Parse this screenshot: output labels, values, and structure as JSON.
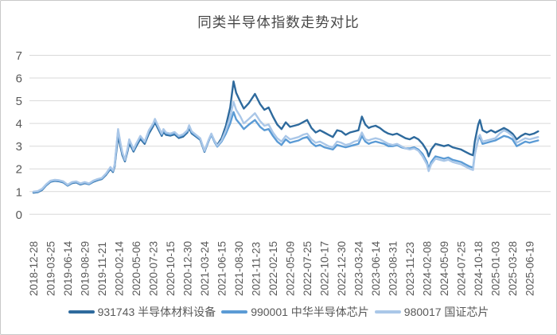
{
  "chart_data": {
    "type": "line",
    "title": "同类半导体指数走势对比",
    "xlabel": "",
    "ylabel": "",
    "ylim": [
      0,
      7
    ],
    "y_ticks": [
      0,
      1,
      2,
      3,
      4,
      5,
      6,
      7
    ],
    "grid": "horizontal",
    "legend_position": "bottom",
    "x_label_rotation": -90,
    "x_tick_labels": [
      "2018-12-28",
      "2019-03-25",
      "2019-06-14",
      "2019-08-29",
      "2019-11-21",
      "2020-02-14",
      "2020-05-06",
      "2020-07-23",
      "2020-10-15",
      "2020-12-30",
      "2021-03-24",
      "2021-06-15",
      "2021-08-30",
      "2021-11-23",
      "2022-02-15",
      "2022-05-09",
      "2022-07-25",
      "2022-10-17",
      "2022-12-30",
      "2023-03-24",
      "2023-06-14",
      "2023-08-31",
      "2023-11-23",
      "2024-02-08",
      "2024-05-09",
      "2024-07-25",
      "2024-10-18",
      "2025-01-03",
      "2025-03-28",
      "2025-06-19"
    ],
    "x_unit": "position in x-tick intervals (0 = 2018-12-28, each interval ≈ 12 weeks)",
    "t": [
      0,
      0.25,
      0.5,
      0.75,
      1,
      1.25,
      1.5,
      1.75,
      2,
      2.25,
      2.5,
      2.75,
      3,
      3.25,
      3.5,
      3.75,
      4,
      4.25,
      4.5,
      4.65,
      4.75,
      4.95,
      5.1,
      5.2,
      5.35,
      5.5,
      5.6,
      5.75,
      5.85,
      6,
      6.25,
      6.5,
      6.75,
      7,
      7.1,
      7.25,
      7.5,
      7.6,
      7.75,
      8,
      8.25,
      8.5,
      8.75,
      9,
      9.1,
      9.25,
      9.5,
      9.75,
      10,
      10.25,
      10.4,
      10.6,
      10.75,
      11,
      11.25,
      11.5,
      11.7,
      11.85,
      12.1,
      12.3,
      12.6,
      12.95,
      13.25,
      13.5,
      13.75,
      14,
      14.25,
      14.5,
      14.75,
      15,
      15.25,
      15.5,
      15.75,
      16,
      16.25,
      16.5,
      16.75,
      17,
      17.25,
      17.5,
      17.75,
      18,
      18.25,
      18.5,
      18.75,
      19,
      19.2,
      19.4,
      19.6,
      19.75,
      20,
      20.25,
      20.5,
      20.75,
      21,
      21.25,
      21.5,
      21.75,
      22,
      22.25,
      22.5,
      22.75,
      23,
      23.1,
      23.25,
      23.5,
      23.75,
      24,
      24.25,
      24.5,
      24.75,
      25,
      25.25,
      25.5,
      25.7,
      25.8,
      26,
      26.1,
      26.25,
      26.5,
      26.75,
      27,
      27.25,
      27.5,
      27.75,
      28,
      28.25,
      28.5,
      28.75,
      29,
      29.25,
      29.5
    ],
    "series": [
      {
        "code": "931743",
        "name": "931743 半导体材料设备",
        "color": "#2e6a9d",
        "values": [
          0.95,
          0.97,
          1.07,
          1.27,
          1.43,
          1.47,
          1.45,
          1.4,
          1.26,
          1.37,
          1.4,
          1.31,
          1.37,
          1.32,
          1.43,
          1.5,
          1.55,
          1.74,
          2.0,
          1.86,
          2.1,
          3.45,
          2.95,
          2.6,
          2.33,
          2.78,
          3.12,
          2.92,
          2.76,
          2.98,
          3.32,
          3.1,
          3.55,
          3.88,
          4.05,
          3.82,
          3.45,
          3.62,
          3.5,
          3.46,
          3.52,
          3.36,
          3.42,
          3.6,
          3.8,
          3.56,
          3.42,
          3.28,
          2.75,
          3.25,
          3.52,
          3.2,
          3.05,
          3.35,
          3.9,
          4.7,
          5.85,
          5.35,
          4.95,
          4.65,
          4.9,
          5.3,
          4.85,
          4.6,
          4.7,
          4.3,
          3.95,
          3.75,
          4.05,
          3.85,
          3.9,
          3.95,
          4.05,
          4.15,
          3.8,
          3.6,
          3.7,
          3.6,
          3.5,
          3.4,
          3.7,
          3.65,
          3.5,
          3.6,
          3.65,
          3.7,
          4.3,
          3.95,
          3.8,
          3.85,
          3.9,
          3.8,
          3.65,
          3.55,
          3.5,
          3.55,
          3.45,
          3.35,
          3.3,
          3.4,
          3.3,
          3.1,
          2.8,
          2.55,
          2.85,
          3.1,
          3.05,
          3.0,
          3.05,
          2.95,
          2.9,
          2.85,
          2.75,
          2.65,
          2.6,
          3.2,
          3.95,
          4.15,
          3.7,
          3.6,
          3.7,
          3.6,
          3.7,
          3.8,
          3.7,
          3.55,
          3.3,
          3.45,
          3.55,
          3.5,
          3.55,
          3.65
        ]
      },
      {
        "code": "990001",
        "name": "990001 中华半导体芯片",
        "color": "#5b9bd5",
        "values": [
          0.97,
          0.99,
          1.09,
          1.29,
          1.45,
          1.49,
          1.47,
          1.42,
          1.27,
          1.39,
          1.42,
          1.33,
          1.39,
          1.33,
          1.45,
          1.52,
          1.57,
          1.77,
          2.05,
          1.89,
          2.16,
          3.68,
          3.05,
          2.68,
          2.37,
          2.86,
          3.25,
          3.01,
          2.81,
          3.06,
          3.4,
          3.16,
          3.65,
          3.95,
          4.15,
          3.9,
          3.51,
          3.7,
          3.56,
          3.51,
          3.58,
          3.41,
          3.48,
          3.66,
          3.88,
          3.61,
          3.46,
          3.31,
          2.77,
          3.26,
          3.5,
          3.16,
          2.98,
          3.2,
          3.55,
          4.0,
          4.5,
          4.18,
          3.95,
          3.75,
          3.95,
          4.15,
          3.85,
          3.7,
          3.75,
          3.45,
          3.2,
          3.05,
          3.3,
          3.15,
          3.2,
          3.25,
          3.35,
          3.4,
          3.15,
          3.0,
          3.05,
          2.95,
          2.9,
          2.85,
          3.05,
          3.0,
          2.95,
          3.0,
          3.05,
          3.1,
          3.45,
          3.2,
          3.1,
          3.15,
          3.2,
          3.15,
          3.1,
          3.0,
          3.0,
          3.05,
          2.95,
          2.9,
          2.9,
          2.95,
          2.85,
          2.65,
          2.3,
          2.0,
          2.3,
          2.55,
          2.5,
          2.45,
          2.5,
          2.4,
          2.35,
          2.3,
          2.2,
          2.1,
          2.05,
          2.65,
          3.3,
          3.4,
          3.1,
          3.15,
          3.2,
          3.25,
          3.35,
          3.45,
          3.4,
          3.3,
          3.0,
          3.1,
          3.2,
          3.15,
          3.2,
          3.25
        ]
      },
      {
        "code": "980017",
        "name": "980017 国证芯片",
        "color": "#aac7e8",
        "values": [
          1.0,
          1.02,
          1.12,
          1.32,
          1.48,
          1.52,
          1.5,
          1.45,
          1.3,
          1.42,
          1.45,
          1.36,
          1.42,
          1.36,
          1.48,
          1.55,
          1.6,
          1.8,
          2.08,
          1.92,
          2.2,
          3.75,
          3.1,
          2.72,
          2.4,
          2.9,
          3.3,
          3.05,
          2.85,
          3.1,
          3.45,
          3.2,
          3.7,
          4.0,
          4.2,
          3.95,
          3.55,
          3.75,
          3.6,
          3.55,
          3.62,
          3.45,
          3.52,
          3.7,
          3.92,
          3.65,
          3.5,
          3.35,
          2.8,
          3.3,
          3.55,
          3.2,
          3.02,
          3.25,
          3.7,
          4.3,
          4.95,
          4.6,
          4.3,
          4.0,
          4.2,
          4.45,
          4.1,
          3.9,
          3.95,
          3.6,
          3.35,
          3.2,
          3.45,
          3.3,
          3.35,
          3.4,
          3.5,
          3.55,
          3.3,
          3.15,
          3.2,
          3.1,
          3.0,
          2.95,
          3.2,
          3.15,
          3.05,
          3.1,
          3.2,
          3.25,
          3.6,
          3.3,
          3.25,
          3.3,
          3.35,
          3.3,
          3.2,
          3.1,
          3.05,
          3.1,
          3.0,
          2.9,
          2.85,
          2.9,
          2.8,
          2.55,
          2.2,
          1.9,
          2.2,
          2.45,
          2.4,
          2.35,
          2.4,
          2.3,
          2.25,
          2.2,
          2.1,
          2.0,
          1.95,
          2.6,
          3.4,
          3.5,
          3.2,
          3.25,
          3.3,
          3.35,
          3.55,
          3.7,
          3.6,
          3.45,
          3.15,
          3.25,
          3.35,
          3.3,
          3.35,
          3.4
        ]
      }
    ],
    "colors": {
      "gridline": "#d9d9d9",
      "axis_text": "#595959",
      "title_text": "#484848",
      "background": "#ffffff",
      "border": "#c8c8c8"
    }
  }
}
